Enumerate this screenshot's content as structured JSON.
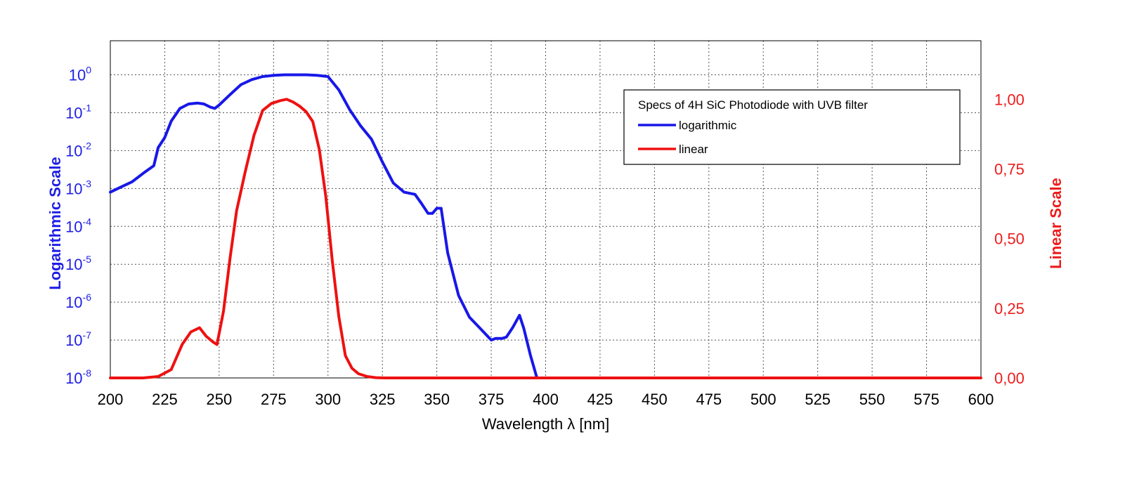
{
  "chart_data": {
    "type": "line",
    "xlabel": "Wavelength λ [nm]",
    "ylabel_left": "Logarithmic Scale",
    "ylabel_right": "Linear Scale",
    "xlim": [
      200,
      600
    ],
    "x_ticks": [
      200,
      225,
      250,
      275,
      300,
      325,
      350,
      375,
      400,
      425,
      450,
      475,
      500,
      525,
      550,
      575,
      600
    ],
    "ylim_left_log10": [
      -8,
      0.9
    ],
    "y_left_ticks": [
      {
        "base": "10",
        "exp": "0"
      },
      {
        "base": "10",
        "exp": "-1"
      },
      {
        "base": "10",
        "exp": "-2"
      },
      {
        "base": "10",
        "exp": "-3"
      },
      {
        "base": "10",
        "exp": "-4"
      },
      {
        "base": "10",
        "exp": "-5"
      },
      {
        "base": "10",
        "exp": "-6"
      },
      {
        "base": "10",
        "exp": "-7"
      },
      {
        "base": "10",
        "exp": "-8"
      }
    ],
    "ylim_right": [
      0,
      1.21
    ],
    "y_right_ticks": [
      "1,00",
      "0,75",
      "0,50",
      "0,25",
      "0,00"
    ],
    "grid": true,
    "legend": {
      "title": "Specs of 4H SiC Photodiode with UVB filter",
      "position": "top-right"
    },
    "colors": {
      "left_axis": "#1f1fe6",
      "right_axis": "#ee1c1c",
      "logarithmic": "#1818e8",
      "linear": "#ee1111"
    },
    "series": [
      {
        "name": "logarithmic",
        "axis": "left",
        "x": [
          200,
          205,
          210,
          215,
          220,
          222,
          225,
          228,
          232,
          236,
          240,
          243,
          246,
          248,
          250,
          255,
          260,
          265,
          270,
          275,
          280,
          285,
          290,
          295,
          300,
          305,
          310,
          315,
          320,
          325,
          330,
          335,
          340,
          343,
          346,
          348,
          350,
          352,
          355,
          360,
          365,
          370,
          375,
          377,
          380,
          382,
          385,
          388,
          390,
          393,
          396,
          397
        ],
        "y": [
          0.0008,
          0.0011,
          0.0015,
          0.0025,
          0.004,
          0.012,
          0.022,
          0.06,
          0.13,
          0.17,
          0.18,
          0.17,
          0.14,
          0.13,
          0.16,
          0.3,
          0.55,
          0.75,
          0.9,
          0.97,
          1.0,
          1.0,
          1.0,
          0.97,
          0.9,
          0.4,
          0.12,
          0.045,
          0.02,
          0.005,
          0.0014,
          0.0008,
          0.0007,
          0.0004,
          0.00022,
          0.00022,
          0.0003,
          0.0003,
          2e-05,
          1.5e-06,
          4e-07,
          2e-07,
          1e-07,
          1.1e-07,
          1.1e-07,
          1.2e-07,
          2.2e-07,
          4.5e-07,
          2e-07,
          4e-08,
          1e-08,
          1e-08
        ]
      },
      {
        "name": "linear",
        "axis": "right",
        "x": [
          200,
          215,
          222,
          228,
          233,
          237,
          241,
          244,
          247,
          249,
          252,
          255,
          258,
          262,
          266,
          270,
          274,
          278,
          281,
          284,
          287,
          290,
          293,
          296,
          299,
          302,
          305,
          308,
          311,
          314,
          318,
          322,
          326,
          330,
          600
        ],
        "y": [
          0,
          0,
          0.005,
          0.03,
          0.12,
          0.165,
          0.18,
          0.15,
          0.13,
          0.12,
          0.24,
          0.43,
          0.6,
          0.74,
          0.87,
          0.96,
          0.985,
          0.995,
          1.0,
          0.99,
          0.975,
          0.955,
          0.92,
          0.82,
          0.65,
          0.42,
          0.22,
          0.08,
          0.035,
          0.015,
          0.005,
          0.001,
          0.0,
          0.0,
          0.0
        ]
      }
    ]
  }
}
